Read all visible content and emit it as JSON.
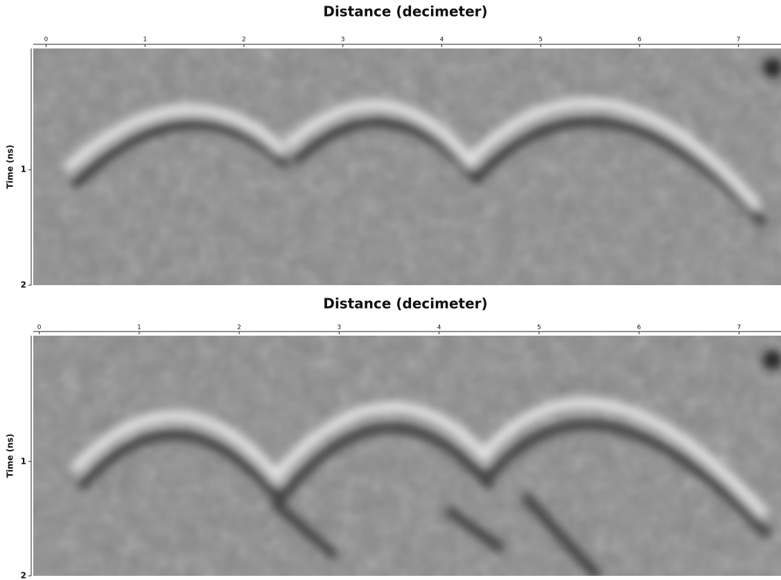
{
  "chart_data": [
    {
      "type": "radargram",
      "title": "Distance (decimeter)",
      "y_label": "Time (ns)",
      "xlim": [
        -0.13,
        7.43
      ],
      "xticks": [
        0,
        1,
        2,
        3,
        4,
        5,
        6,
        7
      ],
      "ylim": [
        -0.05,
        2
      ],
      "yticks": [
        1,
        2
      ]
    },
    {
      "type": "radargram",
      "title": "Distance (decimeter)",
      "y_label": "Time (ns)",
      "xlim": [
        -0.06,
        7.42
      ],
      "xticks": [
        0,
        1,
        2,
        3,
        4,
        5,
        6,
        7
      ],
      "ylim": [
        -0.1,
        2
      ],
      "yticks": [
        1,
        2
      ]
    }
  ]
}
